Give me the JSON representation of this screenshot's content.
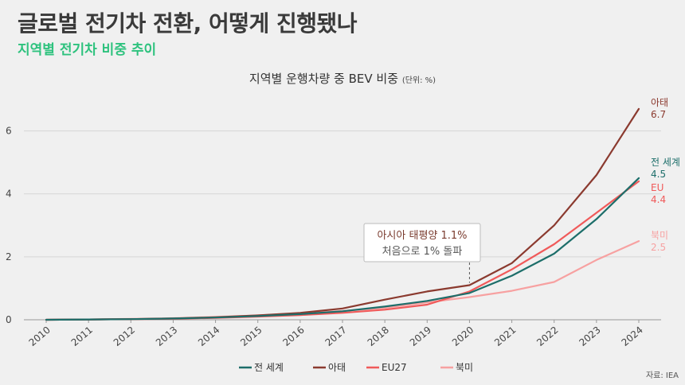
{
  "header": {
    "title": "글로벌 전기차 전환, 어떻게 진행됐나",
    "subtitle": "지역별 전기차 비중 추이"
  },
  "source": "자료: IEA",
  "annotation": {
    "line1": "아시아 태평양 1.1%",
    "line2": "처음으로 1% 돌파",
    "x": 2020
  },
  "chart_data": {
    "type": "line",
    "title": "지역별 운행차량 중 BEV 비중",
    "unit_note": "(단위: %)",
    "x": [
      2010,
      2011,
      2012,
      2013,
      2014,
      2015,
      2016,
      2017,
      2018,
      2019,
      2020,
      2021,
      2022,
      2023,
      2024
    ],
    "ylim": [
      0,
      7
    ],
    "yticks": [
      0,
      2,
      4,
      6
    ],
    "grid": true,
    "series": [
      {
        "name": "전 세계",
        "color": "#1d6e6a",
        "values": [
          0.0,
          0.01,
          0.02,
          0.04,
          0.07,
          0.12,
          0.18,
          0.27,
          0.42,
          0.6,
          0.85,
          1.4,
          2.1,
          3.2,
          4.5
        ],
        "end_label": "전 세계",
        "end_value_label": "4.5"
      },
      {
        "name": "아태",
        "color": "#8b3a2f",
        "values": [
          0.0,
          0.01,
          0.02,
          0.04,
          0.08,
          0.14,
          0.22,
          0.36,
          0.64,
          0.9,
          1.1,
          1.8,
          3.0,
          4.6,
          6.7
        ],
        "end_label": "아태",
        "end_value_label": "6.7"
      },
      {
        "name": "EU27",
        "color": "#f05a5a",
        "values": [
          0.0,
          0.01,
          0.02,
          0.03,
          0.06,
          0.1,
          0.15,
          0.22,
          0.32,
          0.48,
          0.9,
          1.6,
          2.4,
          3.4,
          4.4
        ],
        "end_label": "EU",
        "end_value_label": "4.4"
      },
      {
        "name": "북미",
        "color": "#f7a1a1",
        "values": [
          0.0,
          0.01,
          0.03,
          0.05,
          0.09,
          0.14,
          0.2,
          0.28,
          0.38,
          0.55,
          0.72,
          0.92,
          1.2,
          1.9,
          2.5
        ],
        "end_label": "북미",
        "end_value_label": "2.5"
      }
    ]
  }
}
